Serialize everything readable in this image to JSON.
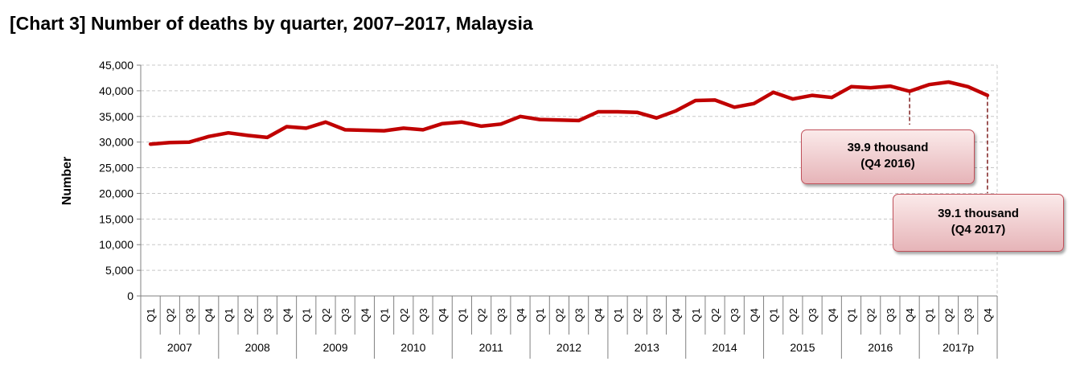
{
  "title": "[Chart 3] Number of deaths by quarter, 2007–2017, Malaysia",
  "chart_data": {
    "type": "line",
    "title": "[Chart 3] Number of deaths by quarter, 2007–2017, Malaysia",
    "ylabel": "Number",
    "xlabel": "",
    "ylim": [
      0,
      45000
    ],
    "yticks": [
      "0",
      "5,000",
      "10,000",
      "15,000",
      "20,000",
      "25,000",
      "30,000",
      "35,000",
      "40,000",
      "45,000"
    ],
    "years": [
      "2007",
      "2008",
      "2009",
      "2010",
      "2011",
      "2012",
      "2013",
      "2014",
      "2015",
      "2016",
      "2017p"
    ],
    "quarters": [
      "Q1",
      "Q2",
      "Q3",
      "Q4"
    ],
    "grid": true,
    "line_color": "#c00000",
    "series": [
      {
        "values": [
          29600,
          29900,
          30000,
          31100,
          31800,
          31300,
          30900,
          33000,
          32700,
          33900,
          32400,
          32300,
          32200,
          32700,
          32400,
          33600,
          33900,
          33100,
          33500,
          35000,
          34400,
          34300,
          34200,
          35900,
          35900,
          35800,
          34700,
          36100,
          38100,
          38200,
          36800,
          37500,
          39700,
          38400,
          39100,
          38700,
          40800,
          40600,
          40900,
          39900,
          41200,
          41700,
          40800,
          39100
        ]
      }
    ],
    "annotations": [
      {
        "line1": "39.9 thousand",
        "line2": "(Q4 2016)",
        "index": 39
      },
      {
        "line1": "39.1 thousand",
        "line2": "(Q4 2017)",
        "index": 43
      }
    ]
  }
}
